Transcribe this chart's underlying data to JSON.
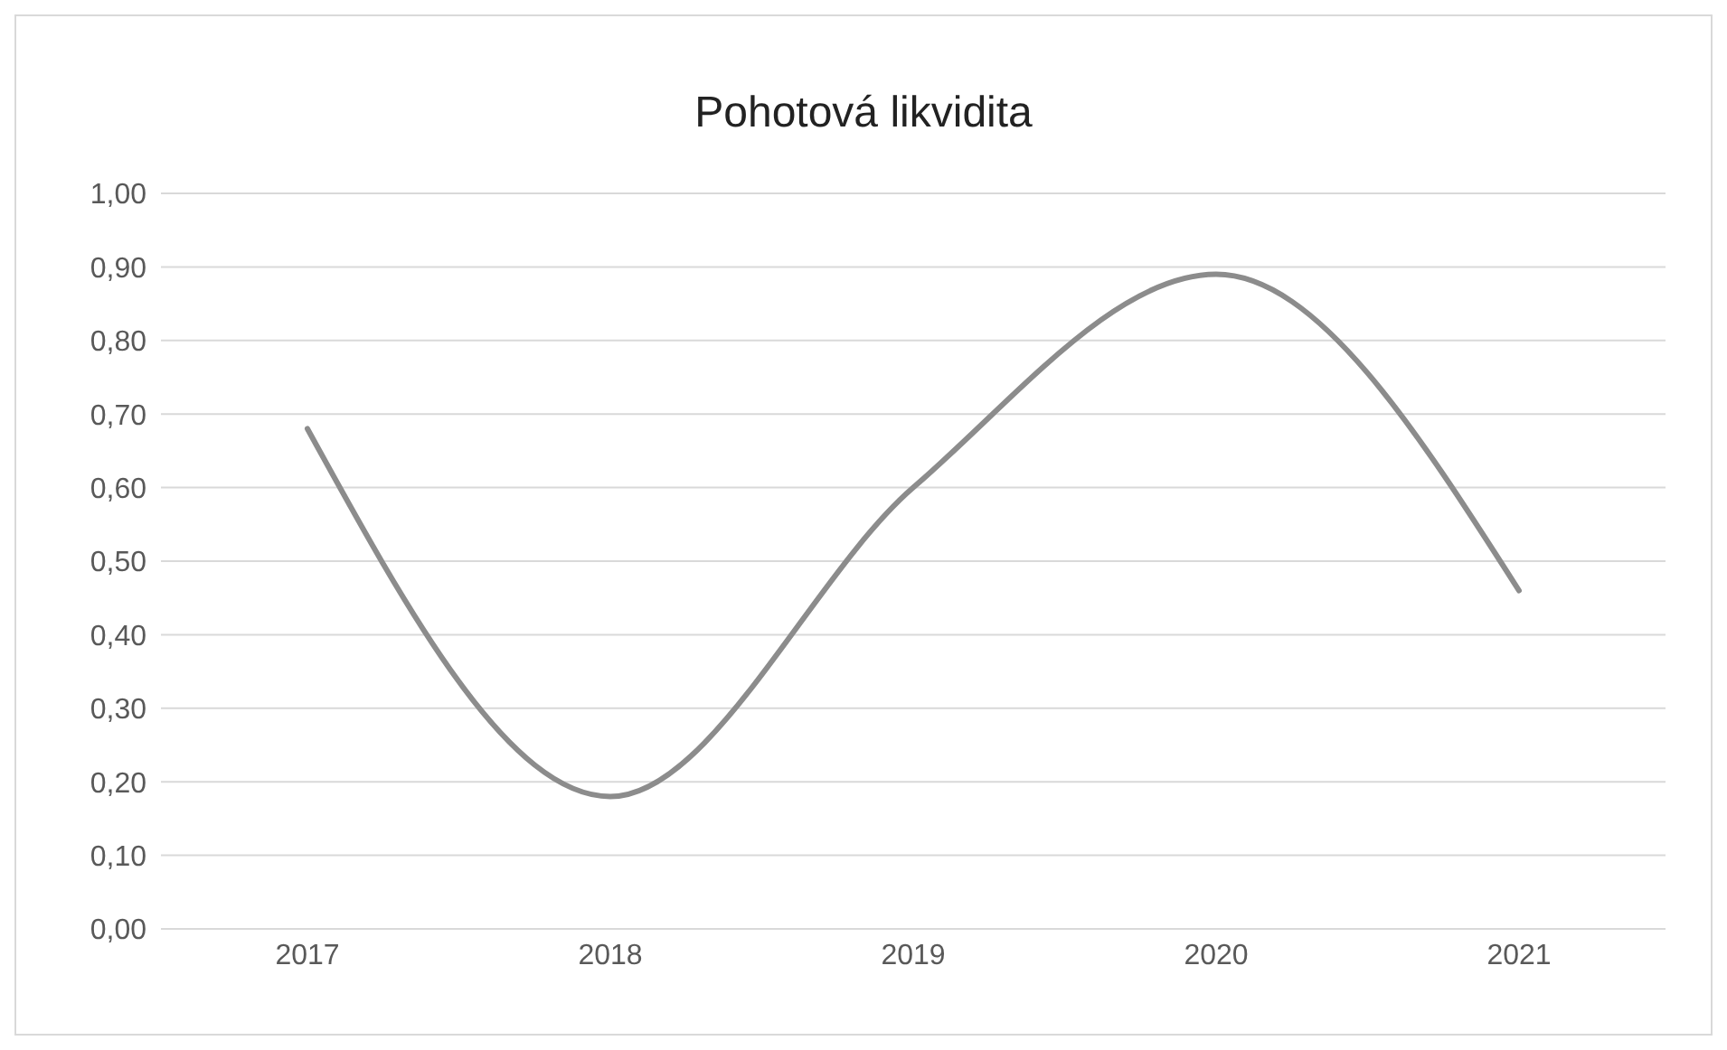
{
  "chart_data": {
    "type": "line",
    "title": "Pohotová likvidita",
    "categories": [
      "2017",
      "2018",
      "2019",
      "2020",
      "2021"
    ],
    "series": [
      {
        "color": "#8c8c8c",
        "values": [
          0.68,
          0.18,
          0.6,
          0.89,
          0.46
        ]
      }
    ],
    "ylim": [
      0,
      1
    ],
    "yticks": [
      {
        "value": 0,
        "label": "0,00"
      },
      {
        "value": 0.1,
        "label": "0,10"
      },
      {
        "value": 0.2,
        "label": "0,20"
      },
      {
        "value": 0.3,
        "label": "0,30"
      },
      {
        "value": 0.4,
        "label": "0,40"
      },
      {
        "value": 0.5,
        "label": "0,50"
      },
      {
        "value": 0.6,
        "label": "0,60"
      },
      {
        "value": 0.7,
        "label": "0,70"
      },
      {
        "value": 0.8,
        "label": "0,80"
      },
      {
        "value": 0.9,
        "label": "0,90"
      },
      {
        "value": 1,
        "label": "1,00"
      }
    ],
    "grid": "y",
    "legend": false,
    "marker": "none",
    "line_style": "solid"
  }
}
